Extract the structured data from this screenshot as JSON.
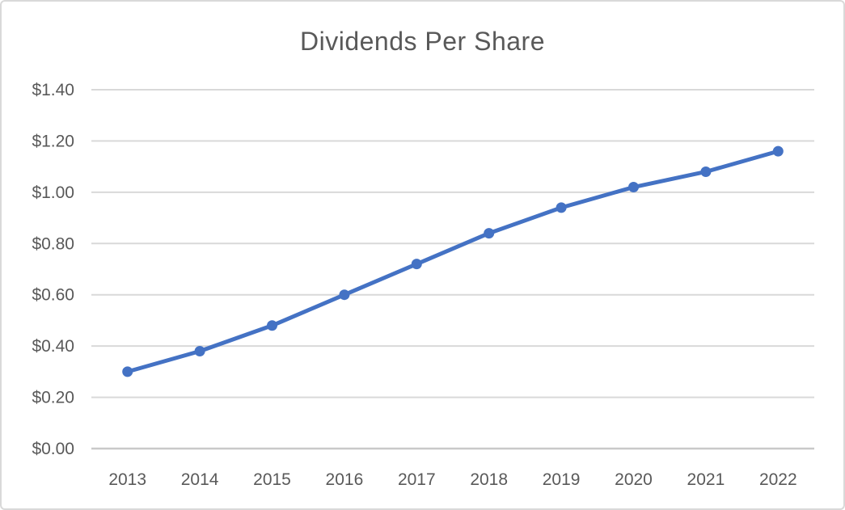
{
  "chart_data": {
    "type": "line",
    "title": "Dividends Per Share",
    "categories": [
      "2013",
      "2014",
      "2015",
      "2016",
      "2017",
      "2018",
      "2019",
      "2020",
      "2021",
      "2022"
    ],
    "series": [
      {
        "name": "Dividends Per Share",
        "values": [
          0.3,
          0.38,
          0.48,
          0.6,
          0.72,
          0.84,
          0.94,
          1.02,
          1.08,
          1.16
        ]
      }
    ],
    "xlabel": "",
    "ylabel": "",
    "ylim": [
      0.0,
      1.4
    ],
    "y_tick_step": 0.2,
    "y_tick_labels": [
      "$0.00",
      "$0.20",
      "$0.40",
      "$0.60",
      "$0.80",
      "$1.00",
      "$1.20",
      "$1.40"
    ],
    "grid": true,
    "legend_position": "none",
    "colors": {
      "line": "#4472C4",
      "marker": "#4472C4",
      "gridline": "#D9D9D9",
      "axis_line": "#C9C9C9",
      "tick_text": "#595959",
      "title_text": "#595959",
      "background": "#FFFFFF",
      "frame_border": "#D9D9D9"
    }
  }
}
